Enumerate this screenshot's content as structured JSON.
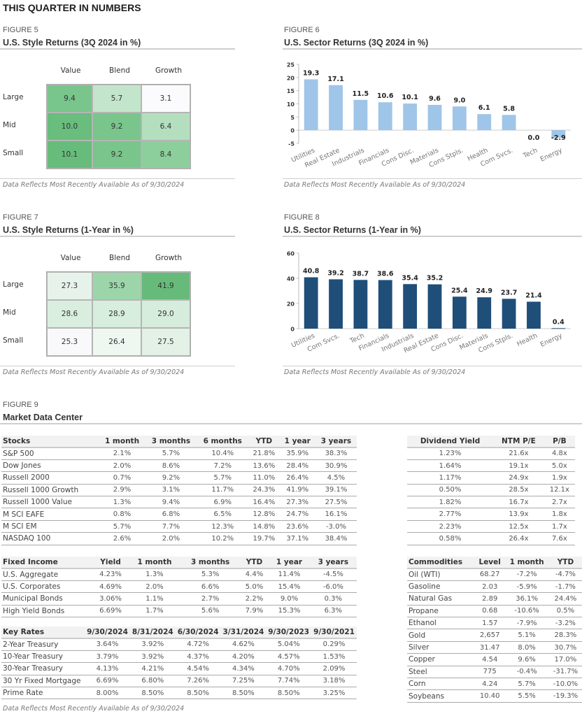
{
  "page_title": "THIS QUARTER IN NUMBERS",
  "note": "Data Reflects Most Recently Available As of 9/30/2024",
  "fig5": {
    "label": "FIGURE 5",
    "title": "U.S. Style Returns (3Q 2024 in %)",
    "columns": [
      "Value",
      "Blend",
      "Growth"
    ],
    "rows": [
      "Large",
      "Mid",
      "Small"
    ],
    "values": [
      [
        "9.4",
        "5.7",
        "3.1"
      ],
      [
        "10.0",
        "9.2",
        "6.4"
      ],
      [
        "10.1",
        "9.2",
        "8.4"
      ]
    ],
    "colors": [
      [
        "#79c58b",
        "#c3e5cc",
        "#fbfbfd"
      ],
      [
        "#69bd7d",
        "#79c58b",
        "#b4dfbf"
      ],
      [
        "#67bc7b",
        "#79c58b",
        "#8ccf9c"
      ]
    ]
  },
  "fig7": {
    "label": "FIGURE 7",
    "title": "U.S. Style Returns (1-Year in %)",
    "columns": [
      "Value",
      "Blend",
      "Growth"
    ],
    "rows": [
      "Large",
      "Mid",
      "Small"
    ],
    "values": [
      [
        "27.3",
        "35.9",
        "41.9"
      ],
      [
        "28.6",
        "28.9",
        "29.0"
      ],
      [
        "25.3",
        "26.4",
        "27.5"
      ]
    ],
    "colors": [
      [
        "#e7f3ea",
        "#9dd5aa",
        "#66bb7a"
      ],
      [
        "#d9eedf",
        "#d7eddd",
        "#d6ecdc"
      ],
      [
        "#f9f9fb",
        "#eff7f1",
        "#e3f1e7"
      ]
    ]
  },
  "chart_data": [
    {
      "type": "bar",
      "figure_label": "FIGURE 6",
      "title": "U.S. Sector Returns (3Q 2024 in %)",
      "categories": [
        "Utilities",
        "Real Estate",
        "Industrials",
        "Financials",
        "Cons Disc.",
        "Materials",
        "Cons Stpls.",
        "Health",
        "Com Svcs.",
        "Tech",
        "Energy"
      ],
      "values": [
        19.3,
        17.1,
        11.5,
        10.6,
        10.1,
        9.6,
        9.0,
        6.1,
        5.8,
        0.0,
        -2.9
      ],
      "labels": [
        "19.3",
        "17.1",
        "11.5",
        "10.6",
        "10.1",
        "9.6",
        "9.0",
        "6.1",
        "5.8",
        "0.0",
        "-2.9"
      ],
      "yticks": [
        25,
        20,
        15,
        10,
        5,
        0,
        -5
      ],
      "ylim": [
        -5,
        25
      ],
      "xlabel": "",
      "ylabel": "",
      "color": "#9fc5e8",
      "grid": false
    },
    {
      "type": "bar",
      "figure_label": "FIGURE 8",
      "title": "U.S. Sector Returns (1-Year in %)",
      "categories": [
        "Utilities",
        "Com Svcs.",
        "Tech",
        "Financials",
        "Industrials",
        "Real Estate",
        "Cons Disc.",
        "Materials",
        "Cons Stpls.",
        "Health",
        "Energy"
      ],
      "values": [
        40.8,
        39.2,
        38.7,
        38.6,
        35.4,
        35.2,
        25.4,
        24.9,
        23.7,
        21.4,
        0.4
      ],
      "labels": [
        "40.8",
        "39.2",
        "38.7",
        "38.6",
        "35.4",
        "35.2",
        "25.4",
        "24.9",
        "23.7",
        "21.4",
        "0.4"
      ],
      "yticks": [
        60,
        40,
        20,
        0
      ],
      "ylim": [
        0,
        60
      ],
      "xlabel": "",
      "ylabel": "",
      "color": "#1f4e79",
      "grid": false
    }
  ],
  "fig9": {
    "label": "FIGURE 9",
    "title": "Market Data Center",
    "stocks": {
      "headers": [
        "Stocks",
        "1 month",
        "3 months",
        "6 months",
        "YTD",
        "1 year",
        "3 years"
      ],
      "rows": [
        [
          "S&P 500",
          "2.1%",
          "5.7%",
          "10.4%",
          "21.8%",
          "35.9%",
          "38.3%"
        ],
        [
          "Dow Jones",
          "2.0%",
          "8.6%",
          "7.2%",
          "13.6%",
          "28.4%",
          "30.9%"
        ],
        [
          "Russell 2000",
          "0.7%",
          "9.2%",
          "5.7%",
          "11.0%",
          "26.4%",
          "4.5%"
        ],
        [
          "Russell 1000 Growth",
          "2.9%",
          "3.1%",
          "11.7%",
          "24.3%",
          "41.9%",
          "39.1%"
        ],
        [
          "Russell 1000 Value",
          "1.3%",
          "9.4%",
          "6.9%",
          "16.4%",
          "27.3%",
          "27.5%"
        ],
        [
          "M SCI EAFE",
          "0.8%",
          "6.8%",
          "6.5%",
          "12.8%",
          "24.7%",
          "16.1%"
        ],
        [
          "M SCI EM",
          "5.7%",
          "7.7%",
          "12.3%",
          "14.8%",
          "23.6%",
          "-3.0%"
        ],
        [
          "NASDAQ 100",
          "2.6%",
          "2.0%",
          "10.2%",
          "19.7%",
          "37.1%",
          "38.4%"
        ]
      ]
    },
    "valuation": {
      "headers": [
        "Dividend Yield",
        "NTM P/E",
        "P/B"
      ],
      "rows": [
        [
          "1.23%",
          "21.6x",
          "4.8x"
        ],
        [
          "1.64%",
          "19.1x",
          "5.0x"
        ],
        [
          "1.17%",
          "24.9x",
          "1.9x"
        ],
        [
          "0.50%",
          "28.5x",
          "12.1x"
        ],
        [
          "1.82%",
          "16.7x",
          "2.7x"
        ],
        [
          "2.77%",
          "13.9x",
          "1.8x"
        ],
        [
          "2.23%",
          "12.5x",
          "1.7x"
        ],
        [
          "0.58%",
          "26.4x",
          "7.6x"
        ]
      ]
    },
    "fixed_income": {
      "headers": [
        "Fixed Income",
        "Yield",
        "1 month",
        "3 months",
        "YTD",
        "1 year",
        "3 years"
      ],
      "rows": [
        [
          "U.S. Aggregate",
          "4.23%",
          "1.3%",
          "5.3%",
          "4.4%",
          "11.4%",
          "-4.5%"
        ],
        [
          "U.S. Corporates",
          "4.69%",
          "2.0%",
          "6.6%",
          "5.0%",
          "15.4%",
          "-6.0%"
        ],
        [
          "Municipal Bonds",
          "3.06%",
          "1.1%",
          "2.7%",
          "2.2%",
          "9.0%",
          "0.3%"
        ],
        [
          "High Yield Bonds",
          "6.69%",
          "1.7%",
          "5.6%",
          "7.9%",
          "15.3%",
          "6.3%"
        ]
      ]
    },
    "key_rates": {
      "headers": [
        "Key Rates",
        "9/30/2024",
        "8/31/2024",
        "6/30/2024",
        "3/31/2024",
        "9/30/2023",
        "9/30/2021"
      ],
      "rows": [
        [
          "2-Year Treasury",
          "3.64%",
          "3.92%",
          "4.72%",
          "4.62%",
          "5.04%",
          "0.29%"
        ],
        [
          "10-Year Treasury",
          "3.79%",
          "3.92%",
          "4.37%",
          "4.20%",
          "4.57%",
          "1.53%"
        ],
        [
          "30-Year Treasury",
          "4.13%",
          "4.21%",
          "4.54%",
          "4.34%",
          "4.70%",
          "2.09%"
        ],
        [
          "30 Yr Fixed Mortgage",
          "6.69%",
          "6.80%",
          "7.26%",
          "7.25%",
          "7.74%",
          "3.18%"
        ],
        [
          "Prime Rate",
          "8.00%",
          "8.50%",
          "8.50%",
          "8.50%",
          "8.50%",
          "3.25%"
        ]
      ]
    },
    "commodities": {
      "headers": [
        "Commodities",
        "Level",
        "1 month",
        "YTD"
      ],
      "rows": [
        [
          "Oil (WTI)",
          "68.27",
          "-7.2%",
          "-4.7%"
        ],
        [
          "Gasoline",
          "2.03",
          "-5.9%",
          "-1.7%"
        ],
        [
          "Natural Gas",
          "2.89",
          "36.1%",
          "24.4%"
        ],
        [
          "Propane",
          "0.68",
          "-10.6%",
          "0.5%"
        ],
        [
          "Ethanol",
          "1.57",
          "-7.9%",
          "-3.2%"
        ],
        [
          "Gold",
          "2,657",
          "5.1%",
          "28.3%"
        ],
        [
          "Silver",
          "31.47",
          "8.0%",
          "30.7%"
        ],
        [
          "Copper",
          "4.54",
          "9.6%",
          "17.0%"
        ],
        [
          "Steel",
          "775",
          "-0.4%",
          "-31.7%"
        ],
        [
          "Corn",
          "4.24",
          "5.7%",
          "-10.0%"
        ],
        [
          "Soybeans",
          "10.40",
          "5.5%",
          "-19.3%"
        ]
      ]
    }
  }
}
